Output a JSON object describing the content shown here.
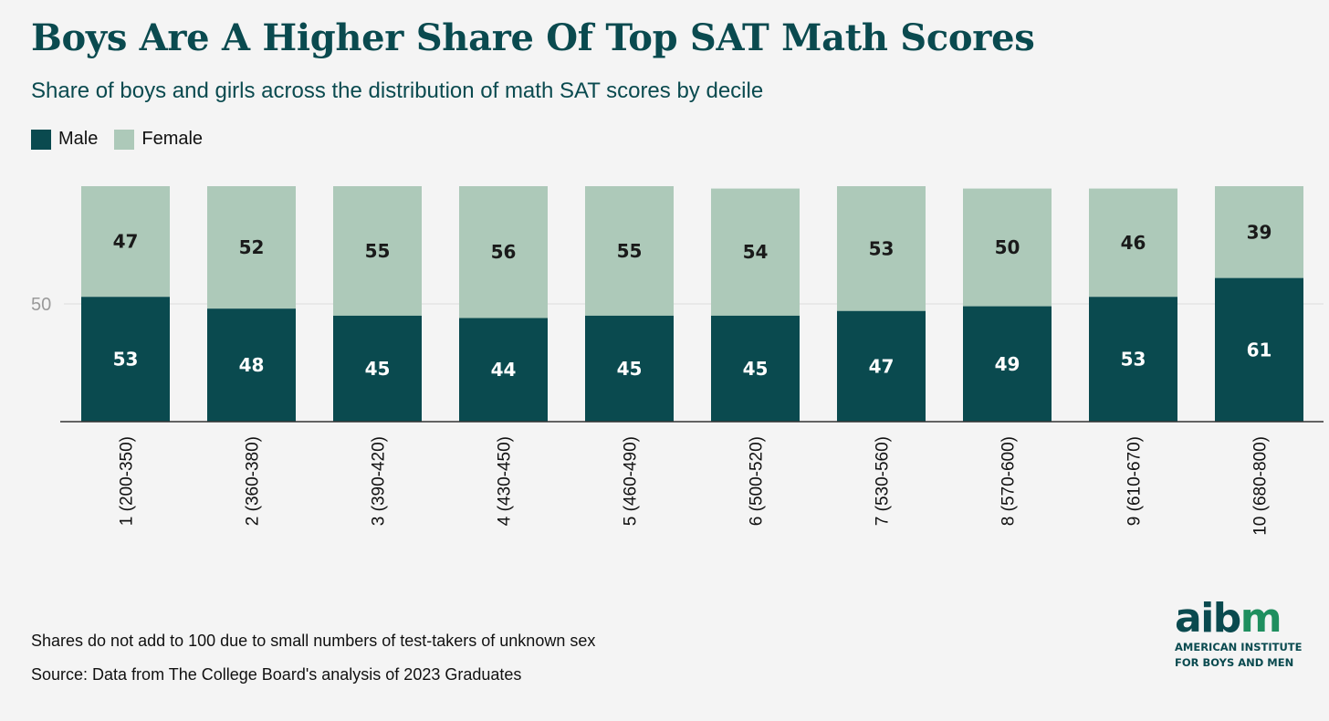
{
  "title": "Boys Are A Higher Share Of Top SAT Math Scores",
  "subtitle": "Share of boys and girls across the distribution of math SAT scores by decile",
  "footnotes": [
    "Shares do not add to 100 due to small numbers of test-takers of unknown sex",
    "Source: Data from The College Board's analysis of 2023 Graduates"
  ],
  "logo": {
    "wordmark_a": "aib",
    "wordmark_b": "m",
    "tagline_1": "AMERICAN INSTITUTE",
    "tagline_2": "FOR BOYS AND MEN"
  },
  "colors": {
    "male": "#0a4a4f",
    "female": "#adc9b9",
    "title": "#0a4a4f",
    "axis": "#333333",
    "grid": "#dcdcdc"
  },
  "chart_data": {
    "type": "bar",
    "stacked": true,
    "title": "Boys Are A Higher Share Of Top SAT Math Scores",
    "subtitle": "Share of boys and girls across the distribution of math SAT scores by decile",
    "legend_position": "top-left",
    "grid": "single gridline at 50",
    "categories": [
      "1 (200-350)",
      "2 (360-380)",
      "3 (390-420)",
      "4 (430-450)",
      "5 (460-490)",
      "6 (500-520)",
      "7 (530-560)",
      "8 (570-600)",
      "9 (610-670)",
      "10 (680-800)"
    ],
    "series": [
      {
        "name": "Male",
        "values": [
          53,
          48,
          45,
          44,
          45,
          45,
          47,
          49,
          53,
          61
        ]
      },
      {
        "name": "Female",
        "values": [
          47,
          52,
          55,
          56,
          55,
          54,
          53,
          50,
          46,
          39
        ]
      }
    ],
    "yticks": [
      50
    ],
    "ylim": [
      0,
      100
    ]
  }
}
